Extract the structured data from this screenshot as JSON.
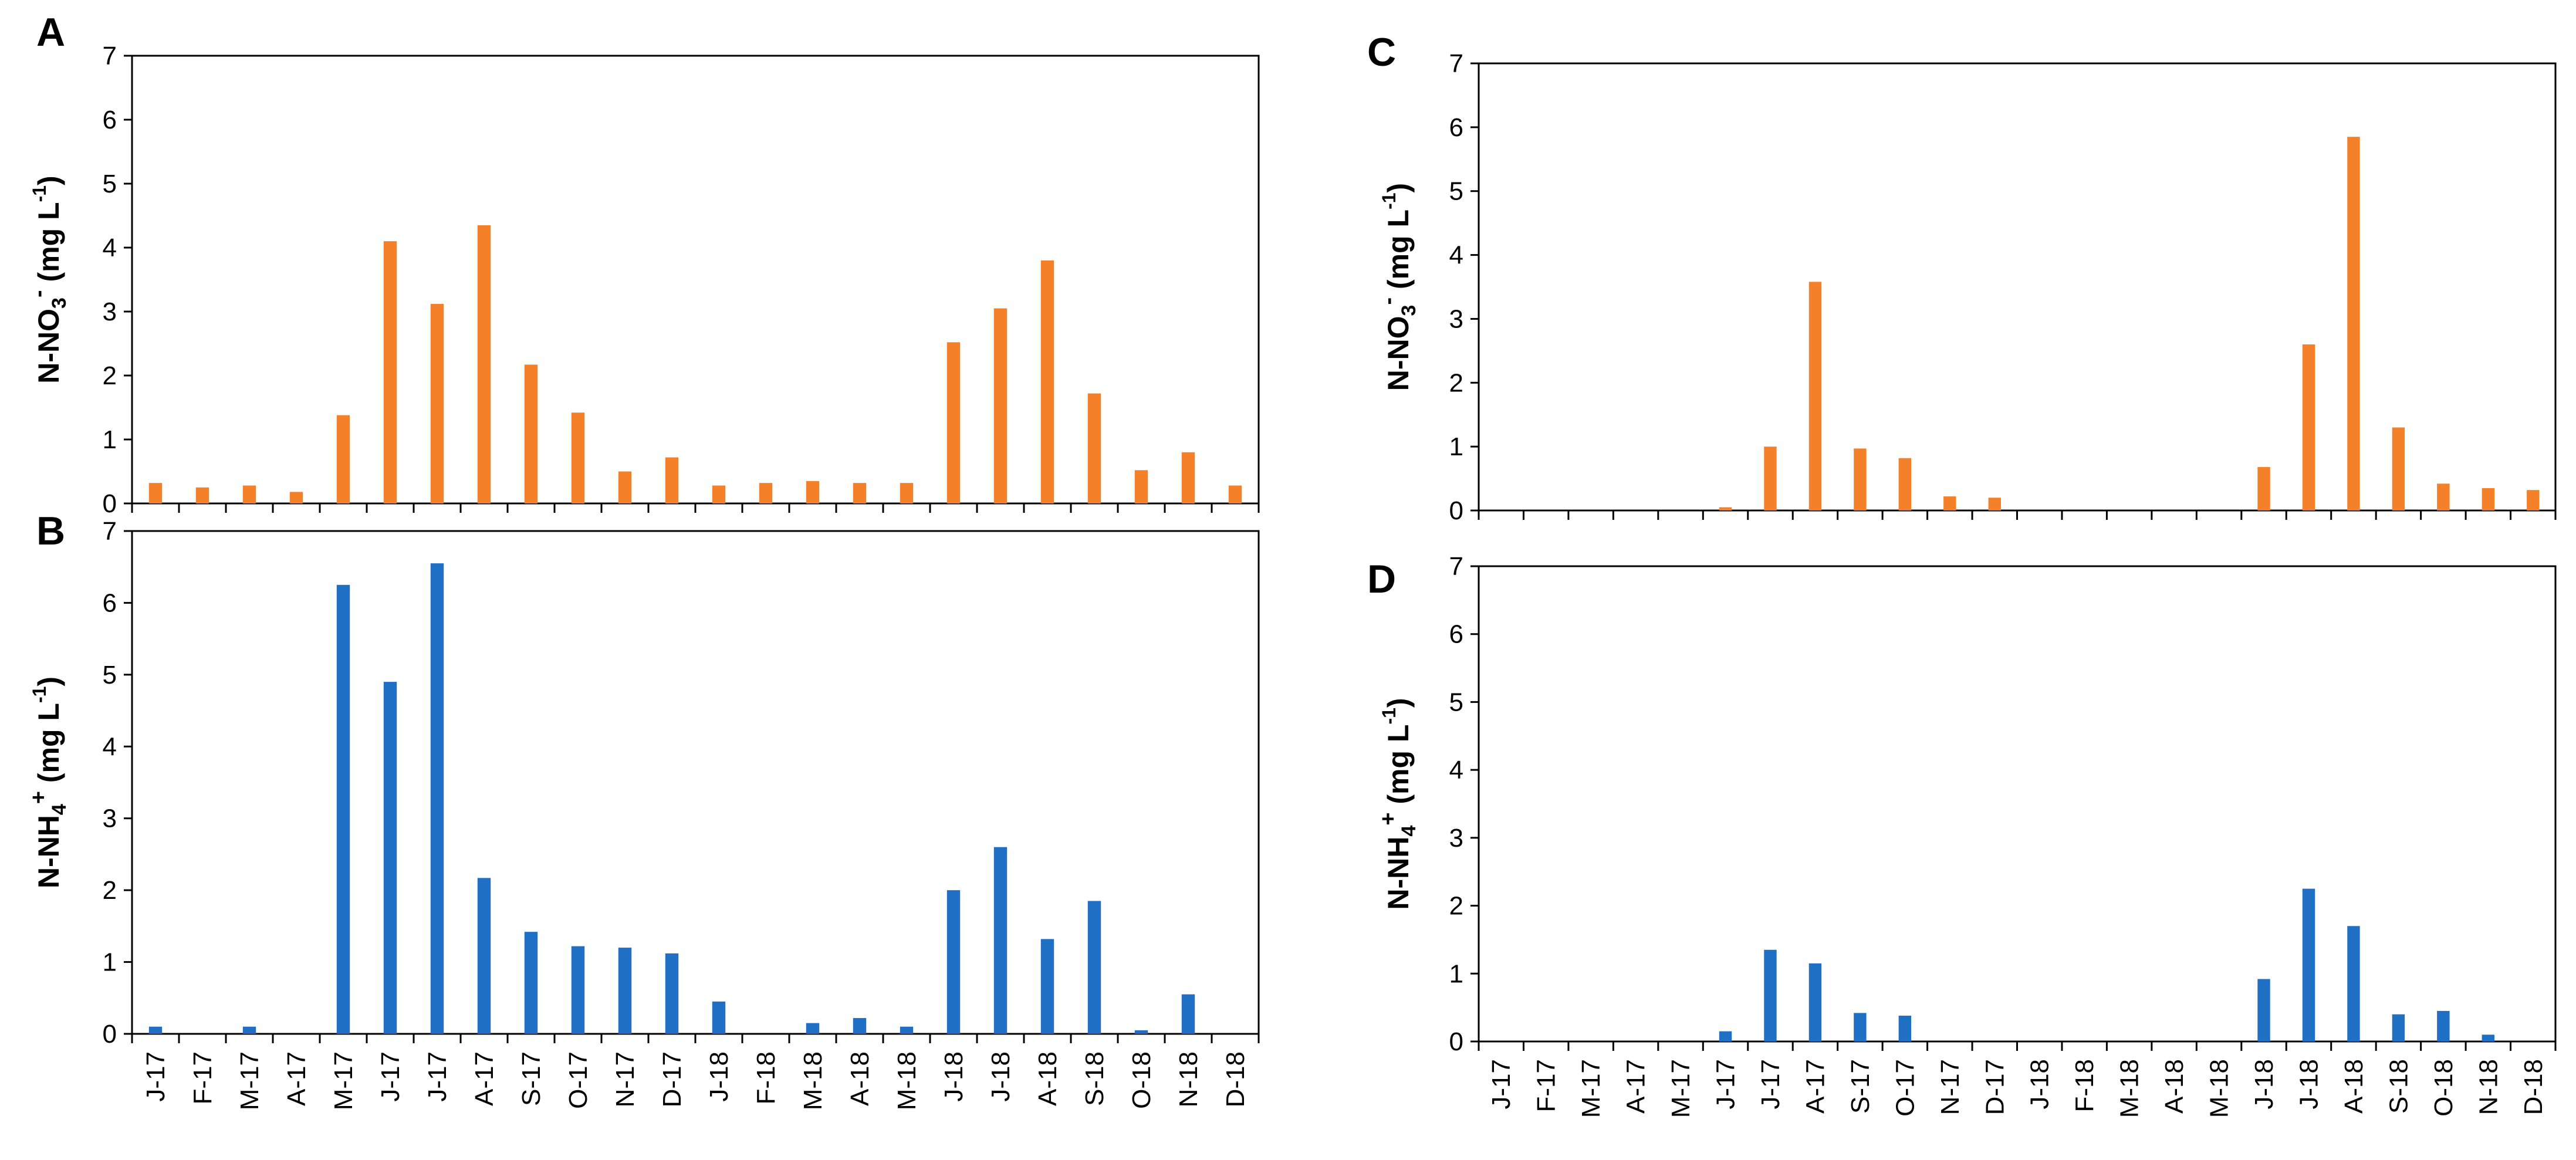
{
  "colors": {
    "nitrate": "#f5802a",
    "ammonium": "#1f6fc5",
    "axis": "#000000"
  },
  "chart_data": [
    {
      "type": "bar",
      "panel": "A",
      "ylabel_main": "N-NO",
      "ylabel_sub": "3",
      "ylabel_sup": "-",
      "ylabel_units": " (mg L",
      "ylabel_units_sup": "-1",
      "ylabel_close": ")",
      "ylim": [
        0,
        7
      ],
      "yticks": [
        "0",
        "1",
        "2",
        "3",
        "4",
        "5",
        "6",
        "7"
      ],
      "categories": [
        "J-17",
        "F-17",
        "M-17",
        "A-17",
        "M-17",
        "J-17",
        "J-17",
        "A-17",
        "S-17",
        "O-17",
        "N-17",
        "D-17",
        "J-18",
        "F-18",
        "M-18",
        "A-18",
        "M-18",
        "J-18",
        "J-18",
        "A-18",
        "S-18",
        "O-18",
        "N-18",
        "D-18"
      ],
      "values": [
        0.32,
        0.25,
        0.28,
        0.18,
        1.38,
        4.1,
        3.12,
        4.35,
        2.17,
        1.42,
        0.5,
        0.72,
        0.28,
        0.32,
        0.35,
        0.32,
        0.32,
        2.52,
        3.05,
        3.8,
        1.72,
        0.52,
        0.8,
        0.28
      ],
      "color": "nitrate",
      "show_xlabels": false
    },
    {
      "type": "bar",
      "panel": "B",
      "ylabel_main": "N-NH",
      "ylabel_sub": "4",
      "ylabel_sup": "+",
      "ylabel_units": " (mg L",
      "ylabel_units_sup": "-1",
      "ylabel_close": ")",
      "ylim": [
        0,
        7
      ],
      "yticks": [
        "0",
        "1",
        "2",
        "3",
        "4",
        "5",
        "6",
        "7"
      ],
      "categories": [
        "J-17",
        "F-17",
        "M-17",
        "A-17",
        "M-17",
        "J-17",
        "J-17",
        "A-17",
        "S-17",
        "O-17",
        "N-17",
        "D-17",
        "J-18",
        "F-18",
        "M-18",
        "A-18",
        "M-18",
        "J-18",
        "J-18",
        "A-18",
        "S-18",
        "O-18",
        "N-18",
        "D-18"
      ],
      "values": [
        0.1,
        0,
        0.1,
        0,
        6.25,
        4.9,
        6.55,
        2.17,
        1.42,
        1.22,
        1.2,
        1.12,
        0.45,
        0,
        0.15,
        0.22,
        0.1,
        2.0,
        2.6,
        1.32,
        1.85,
        0.05,
        0.55,
        0
      ],
      "color": "ammonium",
      "show_xlabels": true
    },
    {
      "type": "bar",
      "panel": "C",
      "ylabel_main": "N-NO",
      "ylabel_sub": "3",
      "ylabel_sup": "-",
      "ylabel_units": " (mg L",
      "ylabel_units_sup": "-1",
      "ylabel_close": ")",
      "ylim": [
        0,
        7
      ],
      "yticks": [
        "0",
        "1",
        "2",
        "3",
        "4",
        "5",
        "6",
        "7"
      ],
      "categories": [
        "J-17",
        "F-17",
        "M-17",
        "A-17",
        "M-17",
        "J-17",
        "J-17",
        "A-17",
        "S-17",
        "O-17",
        "N-17",
        "D-17",
        "J-18",
        "F-18",
        "M-18",
        "A-18",
        "M-18",
        "J-18",
        "J-18",
        "A-18",
        "S-18",
        "O-18",
        "N-18",
        "D-18"
      ],
      "values": [
        0,
        0,
        0,
        0,
        0,
        0.05,
        1.0,
        3.58,
        0.97,
        0.82,
        0.22,
        0.2,
        0,
        0,
        0,
        0,
        0,
        0.68,
        2.6,
        5.85,
        1.3,
        0.42,
        0.35,
        0.32
      ],
      "color": "nitrate",
      "show_xlabels": false
    },
    {
      "type": "bar",
      "panel": "D",
      "ylabel_main": "N-NH",
      "ylabel_sub": "4",
      "ylabel_sup": "+",
      "ylabel_units": " (mg L",
      "ylabel_units_sup": "-1",
      "ylabel_close": ")",
      "ylim": [
        0,
        7
      ],
      "yticks": [
        "0",
        "1",
        "2",
        "3",
        "4",
        "5",
        "6",
        "7"
      ],
      "categories": [
        "J-17",
        "F-17",
        "M-17",
        "A-17",
        "M-17",
        "J-17",
        "J-17",
        "A-17",
        "S-17",
        "O-17",
        "N-17",
        "D-17",
        "J-18",
        "F-18",
        "M-18",
        "A-18",
        "M-18",
        "J-18",
        "J-18",
        "A-18",
        "S-18",
        "O-18",
        "N-18",
        "D-18"
      ],
      "values": [
        0,
        0,
        0,
        0,
        0,
        0.15,
        1.35,
        1.15,
        0.42,
        0.38,
        0,
        0,
        0,
        0,
        0,
        0,
        0,
        0.92,
        2.25,
        1.7,
        0.4,
        0.45,
        0.1,
        0
      ],
      "color": "ammonium",
      "show_xlabels": true
    }
  ]
}
